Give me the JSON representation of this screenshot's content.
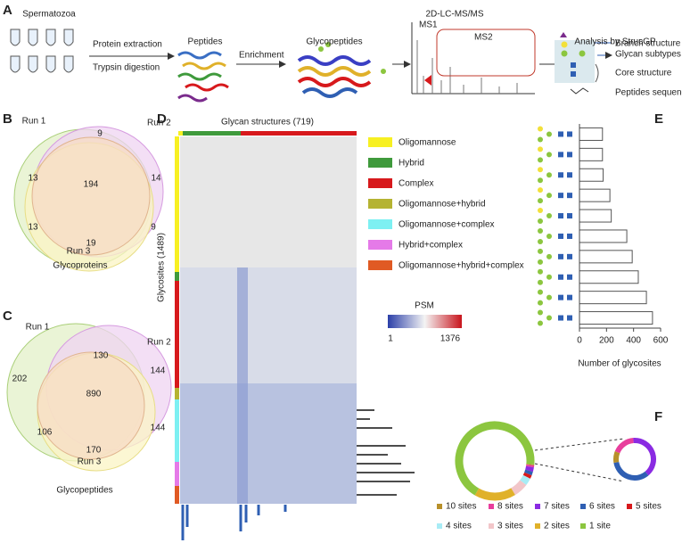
{
  "panel_labels": [
    "A",
    "B",
    "C",
    "D",
    "E",
    "F"
  ],
  "workflow": {
    "steps": [
      "Spermatozoa",
      "Peptides",
      "Glycopeptides",
      "2D-LC-MS/MS",
      "Analysis by StrucGP"
    ],
    "arrow_labels": [
      "Protein extraction",
      "Trypsin digestion",
      "Enrichment"
    ],
    "ms_labels": [
      "MS1",
      "MS2"
    ],
    "structure_labels": [
      "Branch structure",
      "Glycan subtypes",
      "Core structure",
      "Peptides sequence"
    ]
  },
  "heatmap": {
    "x_label": "Glycan structures (719)",
    "y_label": "Glycosites (1489)",
    "legend": [
      {
        "name": "Oligomannose",
        "color": "#f7f022"
      },
      {
        "name": "Hybrid",
        "color": "#3f9a3c"
      },
      {
        "name": "Complex",
        "color": "#d7191c"
      },
      {
        "name": "Oligomannose+hybrid",
        "color": "#b5b332"
      },
      {
        "name": "Oligomannose+complex",
        "color": "#7df0f2"
      },
      {
        "name": "Hybrid+complex",
        "color": "#e57ae8"
      },
      {
        "name": "Oligomannose+hybrid+complex",
        "color": "#e05a24"
      }
    ],
    "colorbar": {
      "title": "PSM",
      "min": 1,
      "max": 1376
    }
  },
  "chart_data": [
    {
      "type": "venn",
      "sets": [
        "Run 1",
        "Run 2",
        "Run 3"
      ],
      "title": "Glycoproteins",
      "values": [
        13,
        14,
        19,
        9,
        13,
        9,
        194
      ]
    },
    {
      "type": "venn",
      "sets": [
        "Run 1",
        "Run 2",
        "Run 3"
      ],
      "title": "Glycopeptides",
      "values": [
        202,
        144,
        170,
        130,
        106,
        144,
        890
      ]
    },
    {
      "type": "hbar",
      "x_label": "Number of glycosites",
      "categories": [
        null,
        null,
        null,
        null,
        null,
        null,
        null,
        null,
        null,
        null
      ],
      "values": [
        170,
        170,
        175,
        225,
        235,
        350,
        390,
        435,
        495,
        540
      ],
      "color": "#ffffff",
      "stroke": "#555555",
      "xlim": [
        0,
        600
      ],
      "xticks": [
        0,
        200,
        400,
        600
      ]
    },
    {
      "type": "donut",
      "categories": [
        "10 sites",
        "8 sites",
        "7 sites",
        "6 sites",
        "5 sites",
        "4 sites",
        "3 sites",
        "2 sites",
        "1 site"
      ],
      "values": [
        0.4,
        0.8,
        1.8,
        1.5,
        1.5,
        3,
        6,
        17,
        68
      ],
      "colors": [
        "#b8902a",
        "#e83e9c",
        "#8a2be2",
        "#2f5fb3",
        "#d7191c",
        "#a8ecf5",
        "#f2c6c9",
        "#e0b12a",
        "#8cc63f"
      ]
    }
  ]
}
